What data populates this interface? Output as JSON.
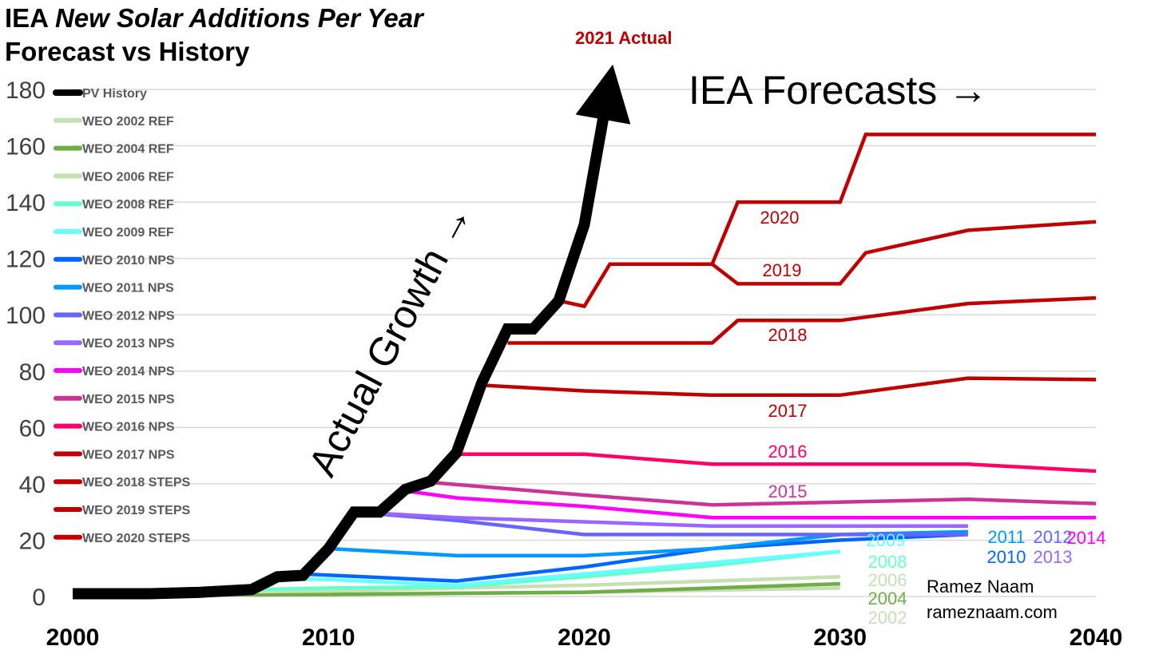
{
  "title": {
    "prefix": "IEA",
    "italic": "New Solar Additions Per Year",
    "line2": "Forecast vs History"
  },
  "annotations": {
    "forecasts_label": "IEA Forecasts →",
    "actual_growth_label": "Actual Growth →",
    "actual_2021_label": "2021 Actual",
    "author": "Ramez Naam",
    "website": "rameznaam.com"
  },
  "chart_data": {
    "type": "line",
    "xlim": [
      2000,
      2040
    ],
    "ylim": [
      0,
      180
    ],
    "x_ticks": [
      "2000",
      "2010",
      "2020",
      "2030",
      "2040"
    ],
    "y_ticks": [
      "0",
      "20",
      "40",
      "60",
      "80",
      "100",
      "120",
      "140",
      "160",
      "180"
    ],
    "grid": true,
    "legend_position": "top-left",
    "series": [
      {
        "name": "PV History",
        "color": "#000000",
        "end_label": "",
        "points": [
          [
            2000,
            1
          ],
          [
            2003,
            1
          ],
          [
            2005,
            1.5
          ],
          [
            2007,
            2.5
          ],
          [
            2008,
            7
          ],
          [
            2009,
            7.5
          ],
          [
            2010,
            17
          ],
          [
            2011,
            30
          ],
          [
            2012,
            30
          ],
          [
            2013,
            38
          ],
          [
            2014,
            41
          ],
          [
            2015,
            51
          ],
          [
            2016,
            76
          ],
          [
            2017,
            95
          ],
          [
            2018,
            95
          ],
          [
            2019,
            105
          ],
          [
            2020,
            132
          ],
          [
            2021,
            183
          ]
        ]
      },
      {
        "name": "WEO 2002 REF",
        "color": "#c5e0b3",
        "end_label": "2002",
        "points": [
          [
            2000,
            1
          ],
          [
            2010,
            1
          ],
          [
            2020,
            1.5
          ],
          [
            2030,
            3
          ]
        ]
      },
      {
        "name": "WEO 2004 REF",
        "color": "#70ad47",
        "end_label": "2004",
        "points": [
          [
            2003,
            0.5
          ],
          [
            2010,
            0.7
          ],
          [
            2020,
            1.5
          ],
          [
            2025,
            3
          ],
          [
            2030,
            4.5
          ]
        ]
      },
      {
        "name": "WEO 2006 REF",
        "color": "#c5e0b3",
        "end_label": "2006",
        "points": [
          [
            2005,
            1.5
          ],
          [
            2010,
            2
          ],
          [
            2020,
            4
          ],
          [
            2030,
            7
          ]
        ]
      },
      {
        "name": "WEO 2008 REF",
        "color": "#66ffcc",
        "end_label": "2008",
        "points": [
          [
            2007,
            2.5
          ],
          [
            2010,
            3
          ],
          [
            2015,
            3.5
          ],
          [
            2020,
            7
          ],
          [
            2025,
            11
          ],
          [
            2030,
            16
          ]
        ]
      },
      {
        "name": "WEO 2009 REF",
        "color": "#66ffff",
        "end_label": "2009",
        "points": [
          [
            2008,
            6.5
          ],
          [
            2010,
            6
          ],
          [
            2015,
            4
          ],
          [
            2020,
            8
          ],
          [
            2025,
            12
          ],
          [
            2030,
            16
          ]
        ]
      },
      {
        "name": "WEO 2010 NPS",
        "color": "#0066ff",
        "end_label": "2010",
        "points": [
          [
            2009,
            8
          ],
          [
            2015,
            5.5
          ],
          [
            2020,
            10.5
          ],
          [
            2025,
            17
          ],
          [
            2030,
            20
          ],
          [
            2035,
            22
          ]
        ]
      },
      {
        "name": "WEO 2011 NPS",
        "color": "#0099ff",
        "end_label": "2011",
        "points": [
          [
            2010,
            17
          ],
          [
            2015,
            14.5
          ],
          [
            2020,
            14.5
          ],
          [
            2025,
            17
          ],
          [
            2030,
            22
          ],
          [
            2035,
            23
          ]
        ]
      },
      {
        "name": "WEO 2012 NPS",
        "color": "#6666ff",
        "end_label": "2012",
        "points": [
          [
            2011,
            30
          ],
          [
            2015,
            27
          ],
          [
            2020,
            22
          ],
          [
            2025,
            22
          ],
          [
            2030,
            22
          ],
          [
            2035,
            22
          ]
        ]
      },
      {
        "name": "WEO 2013 NPS",
        "color": "#9966ff",
        "end_label": "2013",
        "points": [
          [
            2012,
            29.5
          ],
          [
            2015,
            28
          ],
          [
            2020,
            26.5
          ],
          [
            2025,
            25
          ],
          [
            2030,
            25
          ],
          [
            2035,
            25
          ]
        ]
      },
      {
        "name": "WEO 2014 NPS",
        "color": "#ff00ff",
        "end_label": "2014",
        "points": [
          [
            2013,
            37.5
          ],
          [
            2015,
            35
          ],
          [
            2020,
            32
          ],
          [
            2025,
            28
          ],
          [
            2030,
            28
          ],
          [
            2035,
            28
          ],
          [
            2040,
            28
          ]
        ]
      },
      {
        "name": "WEO 2015 NPS",
        "color": "#cc3399",
        "end_label": "2015",
        "points": [
          [
            2014,
            40.5
          ],
          [
            2020,
            36
          ],
          [
            2025,
            32.5
          ],
          [
            2030,
            33.5
          ],
          [
            2035,
            34.5
          ],
          [
            2040,
            33
          ]
        ]
      },
      {
        "name": "WEO 2016 NPS",
        "color": "#ff0066",
        "end_label": "2016",
        "points": [
          [
            2015,
            50.5
          ],
          [
            2020,
            50.5
          ],
          [
            2025,
            47
          ],
          [
            2030,
            47
          ],
          [
            2035,
            47
          ],
          [
            2040,
            44.5
          ]
        ]
      },
      {
        "name": "WEO 2017 NPS",
        "color": "#c00000",
        "end_label": "2017",
        "points": [
          [
            2016,
            75
          ],
          [
            2020,
            73
          ],
          [
            2025,
            71.5
          ],
          [
            2030,
            71.5
          ],
          [
            2035,
            77.5
          ],
          [
            2040,
            77
          ]
        ]
      },
      {
        "name": "WEO 2018 STEPS",
        "color": "#c00000",
        "end_label": "2018",
        "points": [
          [
            2017,
            90
          ],
          [
            2025,
            90
          ],
          [
            2026,
            98
          ],
          [
            2030,
            98
          ],
          [
            2035,
            104
          ],
          [
            2040,
            106
          ]
        ]
      },
      {
        "name": "WEO 2019 STEPS",
        "color": "#c00000",
        "end_label": "2019",
        "points": [
          [
            2019,
            105
          ],
          [
            2020,
            103
          ],
          [
            2021,
            118
          ],
          [
            2025,
            118
          ],
          [
            2026,
            111
          ],
          [
            2030,
            111
          ],
          [
            2031,
            122
          ],
          [
            2035,
            130
          ],
          [
            2040,
            133
          ]
        ]
      },
      {
        "name": "WEO 2020 STEPS",
        "color": "#c00000",
        "end_label": "2020",
        "points": [
          [
            2025,
            118
          ],
          [
            2026,
            140
          ],
          [
            2030,
            140
          ],
          [
            2031,
            164
          ],
          [
            2040,
            164
          ]
        ]
      }
    ]
  }
}
